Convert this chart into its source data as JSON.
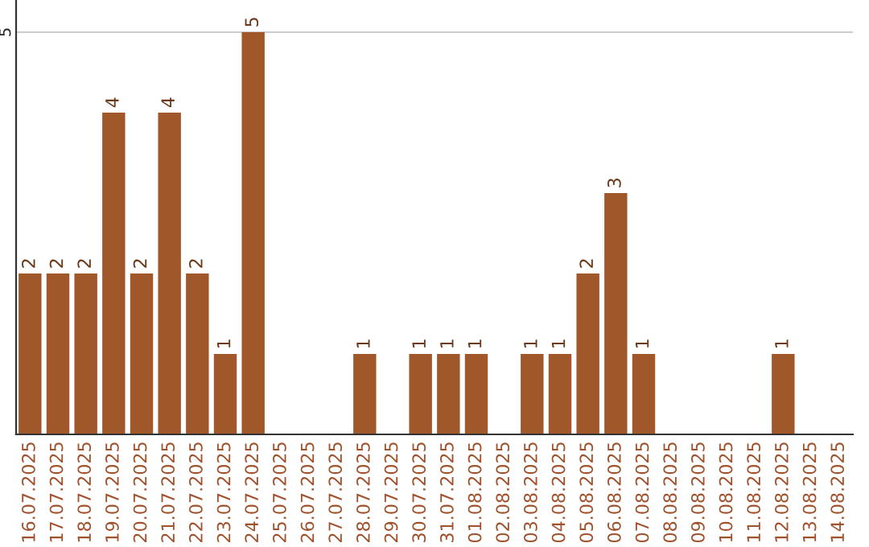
{
  "chart_data": {
    "type": "bar",
    "categories": [
      "16.07.2025",
      "17.07.2025",
      "18.07.2025",
      "19.07.2025",
      "20.07.2025",
      "21.07.2025",
      "22.07.2025",
      "23.07.2025",
      "24.07.2025",
      "25.07.2025",
      "26.07.2025",
      "27.07.2025",
      "28.07.2025",
      "29.07.2025",
      "30.07.2025",
      "31.07.2025",
      "01.08.2025",
      "02.08.2025",
      "03.08.2025",
      "04.08.2025",
      "05.08.2025",
      "06.08.2025",
      "07.08.2025",
      "08.08.2025",
      "09.08.2025",
      "10.08.2025",
      "11.08.2025",
      "12.08.2025",
      "13.08.2025",
      "14.08.2025"
    ],
    "values": [
      2,
      2,
      2,
      4,
      2,
      4,
      2,
      1,
      5,
      0,
      0,
      0,
      1,
      0,
      1,
      1,
      1,
      0,
      1,
      1,
      2,
      3,
      1,
      0,
      0,
      0,
      0,
      1,
      0,
      0
    ],
    "value_labels": [
      "2",
      "2",
      "2",
      "4",
      "2",
      "4",
      "2",
      "1",
      "5",
      null,
      null,
      null,
      "1",
      null,
      "1",
      "1",
      "1",
      null,
      "1",
      "1",
      "2",
      "3",
      "1",
      null,
      null,
      null,
      null,
      "1",
      null,
      null
    ],
    "color": "#a0572a",
    "ylim": [
      0,
      5.4
    ],
    "yticks": [
      5
    ],
    "grid": "y",
    "legend": false
  }
}
